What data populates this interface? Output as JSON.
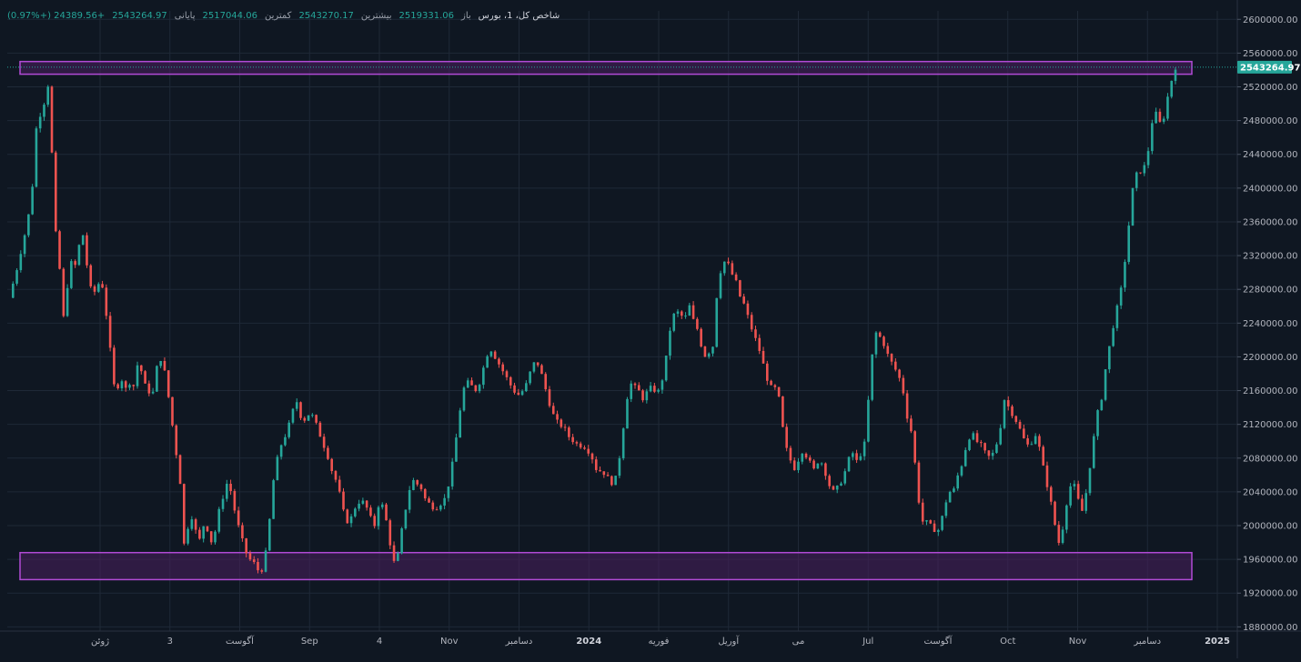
{
  "header": {
    "symbol": "شاخص کل، 1، بورس",
    "open_label": "باز",
    "open_value": "2519331.06",
    "high_label": "بیشترین",
    "high_value": "2543270.17",
    "low_label": "کمترین",
    "low_value": "2517044.06",
    "close_label": "پایانی",
    "close_value": "2543264.97",
    "change_value": "+24389.56 (+0.97%)"
  },
  "colors": {
    "background": "#0f1722",
    "grid": "#1f2937",
    "up": "#26a69a",
    "down": "#ef5350",
    "zone_stroke": "#b24bd6",
    "zone_fill": "#4a1f5f",
    "price_label": "#26a69a"
  },
  "chart_data": {
    "type": "candlestick",
    "title": "",
    "y_axis": {
      "ticks": [
        "2600000.00",
        "2560000.00",
        "2520000.00",
        "2480000.00",
        "2440000.00",
        "2400000.00",
        "2360000.00",
        "2320000.00",
        "2280000.00",
        "2240000.00",
        "2200000.00",
        "2160000.00",
        "2120000.00",
        "2080000.00",
        "2040000.00",
        "2000000.00",
        "1960000.00",
        "1920000.00",
        "1880000.00"
      ],
      "range": [
        1875000,
        2610000
      ]
    },
    "x_axis": {
      "ticks": [
        "ژوئن",
        "3",
        "آگوست",
        "Sep",
        "4",
        "Nov",
        "دسامبر",
        "2024",
        "فوریه",
        "آوریل",
        "می",
        "Jul",
        "آگوست",
        "Oct",
        "Nov",
        "دسامبر",
        "2025"
      ],
      "bold_ticks": [
        "2024",
        "2025"
      ]
    },
    "last_price_label": "2543264.97",
    "last_price": 2543264.97,
    "zones": [
      {
        "name": "resistance-zone",
        "y_min": 2535000,
        "y_max": 2550000,
        "x_start": 0,
        "x_end": 0.995
      },
      {
        "name": "support-zone",
        "y_min": 1936000,
        "y_max": 1968000,
        "x_start": 0,
        "x_end": 0.995
      }
    ],
    "close_path": [
      [
        0.0,
        2270000
      ],
      [
        0.006,
        2300000
      ],
      [
        0.011,
        2330000
      ],
      [
        0.016,
        2360000
      ],
      [
        0.02,
        2400000
      ],
      [
        0.024,
        2480000
      ],
      [
        0.028,
        2490000
      ],
      [
        0.032,
        2510000
      ],
      [
        0.034,
        2525000
      ],
      [
        0.037,
        2440000
      ],
      [
        0.04,
        2350000
      ],
      [
        0.044,
        2300000
      ],
      [
        0.048,
        2230000
      ],
      [
        0.052,
        2320000
      ],
      [
        0.056,
        2300000
      ],
      [
        0.06,
        2330000
      ],
      [
        0.064,
        2345000
      ],
      [
        0.068,
        2300000
      ],
      [
        0.072,
        2270000
      ],
      [
        0.076,
        2285000
      ],
      [
        0.08,
        2290000
      ],
      [
        0.084,
        2250000
      ],
      [
        0.088,
        2200000
      ],
      [
        0.092,
        2150000
      ],
      [
        0.096,
        2180000
      ],
      [
        0.1,
        2160000
      ],
      [
        0.104,
        2170000
      ],
      [
        0.108,
        2165000
      ],
      [
        0.112,
        2200000
      ],
      [
        0.116,
        2170000
      ],
      [
        0.12,
        2160000
      ],
      [
        0.124,
        2155000
      ],
      [
        0.128,
        2190000
      ],
      [
        0.132,
        2200000
      ],
      [
        0.136,
        2170000
      ],
      [
        0.14,
        2130000
      ],
      [
        0.144,
        2090000
      ],
      [
        0.148,
        2050000
      ],
      [
        0.152,
        1960000
      ],
      [
        0.156,
        2020000
      ],
      [
        0.16,
        2000000
      ],
      [
        0.164,
        1980000
      ],
      [
        0.168,
        2000000
      ],
      [
        0.172,
        1995000
      ],
      [
        0.176,
        1975000
      ],
      [
        0.18,
        2010000
      ],
      [
        0.184,
        2030000
      ],
      [
        0.188,
        2050000
      ],
      [
        0.192,
        2040000
      ],
      [
        0.196,
        2010000
      ],
      [
        0.2,
        1990000
      ],
      [
        0.204,
        1970000
      ],
      [
        0.208,
        1960000
      ],
      [
        0.212,
        1955000
      ],
      [
        0.216,
        1945000
      ],
      [
        0.22,
        1950000
      ],
      [
        0.224,
        1990000
      ],
      [
        0.228,
        2050000
      ],
      [
        0.232,
        2080000
      ],
      [
        0.236,
        2100000
      ],
      [
        0.24,
        2110000
      ],
      [
        0.244,
        2130000
      ],
      [
        0.248,
        2150000
      ],
      [
        0.252,
        2130000
      ],
      [
        0.256,
        2125000
      ],
      [
        0.26,
        2135000
      ],
      [
        0.264,
        2125000
      ],
      [
        0.268,
        2110000
      ],
      [
        0.272,
        2095000
      ],
      [
        0.276,
        2080000
      ],
      [
        0.28,
        2060000
      ],
      [
        0.284,
        2050000
      ],
      [
        0.288,
        2020000
      ],
      [
        0.292,
        2005000
      ],
      [
        0.296,
        2010000
      ],
      [
        0.3,
        2025000
      ],
      [
        0.304,
        2030000
      ],
      [
        0.308,
        2025000
      ],
      [
        0.312,
        2010000
      ],
      [
        0.316,
        2000000
      ],
      [
        0.32,
        2030000
      ],
      [
        0.324,
        2020000
      ],
      [
        0.328,
        1990000
      ],
      [
        0.332,
        1955000
      ],
      [
        0.336,
        1965000
      ],
      [
        0.34,
        2000000
      ],
      [
        0.344,
        2030000
      ],
      [
        0.348,
        2055000
      ],
      [
        0.352,
        2050000
      ],
      [
        0.356,
        2045000
      ],
      [
        0.36,
        2030000
      ],
      [
        0.364,
        2025000
      ],
      [
        0.368,
        2020000
      ],
      [
        0.372,
        2025000
      ],
      [
        0.376,
        2030000
      ],
      [
        0.38,
        2050000
      ],
      [
        0.384,
        2080000
      ],
      [
        0.388,
        2120000
      ],
      [
        0.392,
        2160000
      ],
      [
        0.396,
        2170000
      ],
      [
        0.4,
        2165000
      ],
      [
        0.404,
        2160000
      ],
      [
        0.408,
        2175000
      ],
      [
        0.412,
        2200000
      ],
      [
        0.416,
        2210000
      ],
      [
        0.42,
        2200000
      ],
      [
        0.424,
        2190000
      ],
      [
        0.428,
        2180000
      ],
      [
        0.432,
        2170000
      ],
      [
        0.436,
        2160000
      ],
      [
        0.44,
        2155000
      ],
      [
        0.444,
        2160000
      ],
      [
        0.448,
        2170000
      ],
      [
        0.452,
        2190000
      ],
      [
        0.456,
        2195000
      ],
      [
        0.46,
        2180000
      ],
      [
        0.464,
        2160000
      ],
      [
        0.468,
        2140000
      ],
      [
        0.472,
        2125000
      ],
      [
        0.476,
        2120000
      ],
      [
        0.48,
        2115000
      ],
      [
        0.484,
        2105000
      ],
      [
        0.488,
        2100000
      ],
      [
        0.492,
        2095000
      ],
      [
        0.496,
        2095000
      ],
      [
        0.5,
        2090000
      ],
      [
        0.504,
        2080000
      ],
      [
        0.508,
        2065000
      ],
      [
        0.512,
        2065000
      ],
      [
        0.516,
        2060000
      ],
      [
        0.52,
        2050000
      ],
      [
        0.524,
        2055000
      ],
      [
        0.528,
        2085000
      ],
      [
        0.532,
        2130000
      ],
      [
        0.536,
        2170000
      ],
      [
        0.54,
        2165000
      ],
      [
        0.544,
        2160000
      ],
      [
        0.548,
        2150000
      ],
      [
        0.552,
        2160000
      ],
      [
        0.556,
        2165000
      ],
      [
        0.56,
        2155000
      ],
      [
        0.564,
        2170000
      ],
      [
        0.568,
        2200000
      ],
      [
        0.572,
        2240000
      ],
      [
        0.576,
        2255000
      ],
      [
        0.58,
        2250000
      ],
      [
        0.584,
        2245000
      ],
      [
        0.588,
        2260000
      ],
      [
        0.592,
        2240000
      ],
      [
        0.596,
        2230000
      ],
      [
        0.6,
        2200000
      ],
      [
        0.604,
        2205000
      ],
      [
        0.608,
        2210000
      ],
      [
        0.612,
        2280000
      ],
      [
        0.616,
        2310000
      ],
      [
        0.62,
        2315000
      ],
      [
        0.624,
        2300000
      ],
      [
        0.628,
        2290000
      ],
      [
        0.632,
        2270000
      ],
      [
        0.636,
        2260000
      ],
      [
        0.64,
        2240000
      ],
      [
        0.644,
        2225000
      ],
      [
        0.648,
        2210000
      ],
      [
        0.652,
        2190000
      ],
      [
        0.656,
        2170000
      ],
      [
        0.66,
        2160000
      ],
      [
        0.664,
        2165000
      ],
      [
        0.668,
        2120000
      ],
      [
        0.672,
        2090000
      ],
      [
        0.676,
        2075000
      ],
      [
        0.68,
        2065000
      ],
      [
        0.684,
        2090000
      ],
      [
        0.688,
        2085000
      ],
      [
        0.692,
        2075000
      ],
      [
        0.696,
        2065000
      ],
      [
        0.7,
        2080000
      ],
      [
        0.704,
        2070000
      ],
      [
        0.708,
        2050000
      ],
      [
        0.712,
        2040000
      ],
      [
        0.716,
        2045000
      ],
      [
        0.72,
        2055000
      ],
      [
        0.724,
        2070000
      ],
      [
        0.728,
        2090000
      ],
      [
        0.732,
        2075000
      ],
      [
        0.736,
        2085000
      ],
      [
        0.74,
        2100000
      ],
      [
        0.744,
        2175000
      ],
      [
        0.748,
        2230000
      ],
      [
        0.752,
        2225000
      ],
      [
        0.756,
        2215000
      ],
      [
        0.76,
        2200000
      ],
      [
        0.764,
        2190000
      ],
      [
        0.768,
        2180000
      ],
      [
        0.772,
        2165000
      ],
      [
        0.776,
        2130000
      ],
      [
        0.78,
        2110000
      ],
      [
        0.784,
        2060000
      ],
      [
        0.788,
        2005000
      ],
      [
        0.792,
        2005000
      ],
      [
        0.796,
        2000000
      ],
      [
        0.8,
        1995000
      ],
      [
        0.804,
        1995000
      ],
      [
        0.808,
        2020000
      ],
      [
        0.812,
        2040000
      ],
      [
        0.816,
        2040000
      ],
      [
        0.82,
        2060000
      ],
      [
        0.824,
        2075000
      ],
      [
        0.828,
        2100000
      ],
      [
        0.832,
        2110000
      ],
      [
        0.836,
        2100000
      ],
      [
        0.84,
        2095000
      ],
      [
        0.844,
        2085000
      ],
      [
        0.848,
        2080000
      ],
      [
        0.852,
        2090000
      ],
      [
        0.856,
        2110000
      ],
      [
        0.86,
        2150000
      ],
      [
        0.864,
        2140000
      ],
      [
        0.868,
        2130000
      ],
      [
        0.872,
        2120000
      ],
      [
        0.876,
        2105000
      ],
      [
        0.88,
        2095000
      ],
      [
        0.884,
        2100000
      ],
      [
        0.888,
        2110000
      ],
      [
        0.892,
        2080000
      ],
      [
        0.896,
        2055000
      ],
      [
        0.9,
        2030000
      ],
      [
        0.904,
        2000000
      ],
      [
        0.908,
        1975000
      ],
      [
        0.912,
        2010000
      ],
      [
        0.916,
        2045000
      ],
      [
        0.92,
        2050000
      ],
      [
        0.924,
        2030000
      ],
      [
        0.928,
        2015000
      ],
      [
        0.932,
        2050000
      ],
      [
        0.936,
        2090000
      ],
      [
        0.94,
        2130000
      ],
      [
        0.944,
        2150000
      ],
      [
        0.948,
        2190000
      ],
      [
        0.952,
        2220000
      ],
      [
        0.956,
        2250000
      ],
      [
        0.96,
        2270000
      ],
      [
        0.964,
        2310000
      ],
      [
        0.968,
        2360000
      ],
      [
        0.972,
        2410000
      ],
      [
        0.976,
        2420000
      ],
      [
        0.98,
        2420000
      ],
      [
        0.984,
        2440000
      ],
      [
        0.988,
        2480000
      ],
      [
        0.992,
        2490000
      ],
      [
        0.996,
        2470000
      ],
      [
        1.0,
        2500000
      ],
      [
        1.004,
        2525000
      ],
      [
        1.008,
        2543264.97
      ]
    ]
  }
}
